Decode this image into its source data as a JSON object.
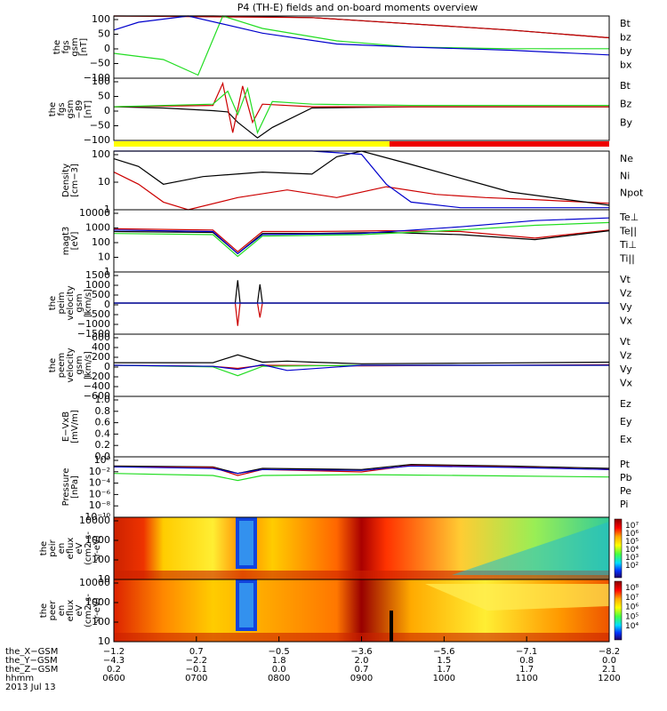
{
  "title": "P4 (TH-E) fields and on-board moments overview",
  "colors": {
    "black": "#000000",
    "red": "#cc0000",
    "green": "#22dd22",
    "blue": "#0000cc",
    "yellow": "#ffff00",
    "bar_red": "#ee0000"
  },
  "colorbar_labels": [
    "10⁷",
    "10⁶",
    "10⁵",
    "10⁴",
    "10³",
    "10²"
  ],
  "colorbar2_labels": [
    "10⁸",
    "10⁷",
    "10⁶",
    "10⁵",
    "10⁴"
  ],
  "chart_data": [
    {
      "type": "line",
      "id": "fgs",
      "ylabel": [
        "the",
        "fgs",
        "gsm",
        "[nT]"
      ],
      "ylim": [
        -100,
        100
      ],
      "ticks": [
        "100",
        "50",
        "0",
        "−50",
        "−100"
      ],
      "series": [
        {
          "name": "Bt",
          "color": "#000000",
          "x": [
            0,
            0.1,
            0.2,
            0.4,
            0.6,
            0.8,
            1.0
          ],
          "values": [
            100,
            100,
            100,
            95,
            75,
            55,
            30
          ]
        },
        {
          "name": "bz",
          "color": "#cc0000",
          "x": [
            0,
            0.4,
            0.6,
            0.8,
            1.0
          ],
          "values": [
            100,
            95,
            75,
            55,
            30
          ]
        },
        {
          "name": "by",
          "color": "#22dd22",
          "x": [
            0,
            0.1,
            0.17,
            0.22,
            0.3,
            0.45,
            0.6,
            0.8,
            1.0
          ],
          "values": [
            -20,
            -40,
            -90,
            100,
            60,
            20,
            0,
            -5,
            -5
          ]
        },
        {
          "name": "bx",
          "color": "#0000cc",
          "x": [
            0,
            0.05,
            0.15,
            0.3,
            0.45,
            0.6,
            0.8,
            1.0
          ],
          "values": [
            55,
            80,
            100,
            45,
            10,
            0,
            -10,
            -25
          ]
        }
      ]
    },
    {
      "type": "line",
      "id": "fgs-dsl",
      "ylabel": [
        "the",
        "fgs",
        "gsm",
        "−89",
        "[nT]"
      ],
      "ylim": [
        -130,
        110
      ],
      "ticks": [
        "100",
        "50",
        "0",
        "−50",
        "−100"
      ],
      "series": [
        {
          "name": "Bt",
          "color": "#000000",
          "x": [
            0,
            0.1,
            0.2,
            0.23,
            0.25,
            0.27,
            0.29,
            0.32,
            0.4,
            0.6,
            0.8,
            1.0
          ],
          "values": [
            0,
            -5,
            -15,
            -20,
            -60,
            -90,
            -120,
            -80,
            -5,
            0,
            0,
            0
          ]
        },
        {
          "name": "Bz",
          "color": "#cc0000",
          "x": [
            0,
            0.2,
            0.22,
            0.24,
            0.26,
            0.28,
            0.3,
            0.4,
            0.6,
            1.0
          ],
          "values": [
            0,
            5,
            90,
            -100,
            80,
            -60,
            10,
            0,
            0,
            0
          ]
        },
        {
          "name": "By",
          "color": "#22dd22",
          "x": [
            0,
            0.2,
            0.23,
            0.25,
            0.27,
            0.29,
            0.32,
            0.4,
            0.6,
            1.0
          ],
          "values": [
            0,
            10,
            60,
            -30,
            70,
            -100,
            20,
            10,
            5,
            5
          ]
        }
      ]
    },
    {
      "type": "line",
      "id": "density",
      "ylabel": [
        "Density",
        "[cm−3]"
      ],
      "scale": "log",
      "ylim": [
        1,
        200
      ],
      "ticks": [
        "100",
        "10",
        "1"
      ],
      "series": [
        {
          "name": "Ne",
          "color": "#cc0000",
          "x": [
            0,
            0.05,
            0.1,
            0.15,
            0.25,
            0.35,
            0.45,
            0.55,
            0.65,
            0.75,
            0.85,
            0.95,
            1.0
          ],
          "values": [
            30,
            10,
            2,
            1,
            3,
            6,
            3,
            8,
            4,
            3,
            2.5,
            2,
            1.8
          ]
        },
        {
          "name": "Ni",
          "color": "#000000",
          "x": [
            0,
            0.05,
            0.1,
            0.18,
            0.3,
            0.4,
            0.45,
            0.5,
            0.6,
            0.8,
            1.0
          ],
          "values": [
            100,
            50,
            10,
            20,
            30,
            25,
            120,
            200,
            60,
            5,
            1.5
          ]
        },
        {
          "name": "Npot",
          "color": "#0000cc",
          "x": [
            0,
            0.2,
            0.4,
            0.5,
            0.55,
            0.6,
            0.7,
            0.8,
            1.0
          ],
          "values": [
            200,
            200,
            200,
            150,
            10,
            2,
            1.2,
            1.2,
            1.2
          ]
        }
      ]
    },
    {
      "type": "line",
      "id": "temperature",
      "ylabel": [
        "magt3",
        "[eV]"
      ],
      "scale": "log",
      "ylim": [
        1,
        10000
      ],
      "ticks": [
        "10000",
        "1000",
        "100",
        "10",
        "1"
      ],
      "series": [
        {
          "name": "Te⊥",
          "color": "#cc0000",
          "x": [
            0,
            0.2,
            0.25,
            0.3,
            0.4,
            0.55,
            0.7,
            0.85,
            1.0
          ],
          "values": [
            600,
            500,
            20,
            400,
            400,
            450,
            400,
            150,
            500
          ]
        },
        {
          "name": "Te||",
          "color": "#000000",
          "x": [
            0,
            0.2,
            0.25,
            0.3,
            0.4,
            0.55,
            0.7,
            0.85,
            1.0
          ],
          "values": [
            400,
            350,
            15,
            300,
            300,
            350,
            250,
            120,
            450
          ]
        },
        {
          "name": "Ti⊥",
          "color": "#0000cc",
          "x": [
            0,
            0.2,
            0.25,
            0.3,
            0.5,
            0.7,
            0.85,
            1.0
          ],
          "values": [
            500,
            400,
            15,
            250,
            300,
            800,
            2000,
            3000
          ]
        },
        {
          "name": "Ti||",
          "color": "#22dd22",
          "x": [
            0,
            0.2,
            0.25,
            0.3,
            0.5,
            0.7,
            0.85,
            1.0
          ],
          "values": [
            300,
            250,
            10,
            200,
            250,
            500,
            1000,
            1500
          ]
        }
      ]
    },
    {
      "type": "line",
      "id": "peim-velocity",
      "ylabel": [
        "the",
        "peim",
        "velocity",
        "gsm",
        "[km/s]"
      ],
      "ylim": [
        -1500,
        1500
      ],
      "ticks": [
        "1500",
        "1000",
        "500",
        "0",
        "−500",
        "−1000",
        "−1500"
      ],
      "series": [
        {
          "name": "Vt",
          "color": "#000000",
          "x": [
            0,
            0.245,
            0.25,
            0.255,
            0.29,
            0.295,
            0.3,
            1.0
          ],
          "values": [
            0,
            0,
            1100,
            0,
            0,
            900,
            0,
            0
          ]
        },
        {
          "name": "Vz",
          "color": "#cc0000",
          "x": [
            0,
            0.245,
            0.25,
            0.255,
            0.29,
            0.295,
            0.3,
            1.0
          ],
          "values": [
            0,
            0,
            -1100,
            0,
            0,
            -700,
            0,
            0
          ]
        },
        {
          "name": "Vy",
          "color": "#22dd22",
          "x": [
            0,
            1.0
          ],
          "values": [
            0,
            0
          ]
        },
        {
          "name": "Vx",
          "color": "#0000cc",
          "x": [
            0,
            1.0
          ],
          "values": [
            0,
            0
          ]
        }
      ]
    },
    {
      "type": "line",
      "id": "peem-velocity",
      "ylabel": [
        "the",
        "peem",
        "velocity",
        "gsm",
        "[km/s]"
      ],
      "ylim": [
        -600,
        600
      ],
      "ticks": [
        "600",
        "400",
        "200",
        "0",
        "−200",
        "−400",
        "−600"
      ],
      "series": [
        {
          "name": "Vt",
          "color": "#000000",
          "x": [
            0,
            0.2,
            0.25,
            0.3,
            0.35,
            0.4,
            0.5,
            0.7,
            1.0
          ],
          "values": [
            50,
            50,
            200,
            60,
            80,
            60,
            30,
            40,
            60
          ]
        },
        {
          "name": "Vz",
          "color": "#cc0000",
          "x": [
            0,
            0.2,
            0.25,
            0.3,
            0.5,
            1.0
          ],
          "values": [
            0,
            -20,
            -60,
            0,
            -10,
            10
          ]
        },
        {
          "name": "Vy",
          "color": "#22dd22",
          "x": [
            0,
            0.2,
            0.25,
            0.3,
            0.5,
            1.0
          ],
          "values": [
            0,
            -30,
            -200,
            -20,
            0,
            0
          ]
        },
        {
          "name": "Vx",
          "color": "#0000cc",
          "x": [
            0,
            0.2,
            0.25,
            0.3,
            0.35,
            0.5,
            1.0
          ],
          "values": [
            0,
            -20,
            -80,
            10,
            -100,
            0,
            0
          ]
        }
      ]
    },
    {
      "type": "line",
      "id": "e-vxb",
      "ylabel": [
        "E−VxB",
        "[mV/m]"
      ],
      "ylim": [
        0,
        1.0
      ],
      "ticks": [
        "1.0",
        "0.8",
        "0.6",
        "0.4",
        "0.2",
        "0.0"
      ],
      "series": [
        {
          "name": "Ez",
          "color": "#cc0000",
          "x": [],
          "values": []
        },
        {
          "name": "Ey",
          "color": "#22dd22",
          "x": [],
          "values": []
        },
        {
          "name": "Ex",
          "color": "#0000cc",
          "x": [],
          "values": []
        }
      ]
    },
    {
      "type": "line",
      "id": "pressure",
      "ylabel": [
        "Pressure",
        "[nPa]"
      ],
      "scale": "log",
      "ylim": [
        1e-10,
        100.0
      ],
      "ticks": [
        "10⁰",
        "10⁻²",
        "10⁻⁴",
        "10⁻⁶",
        "10⁻⁸",
        "10⁻¹⁰"
      ],
      "series": [
        {
          "name": "Pt",
          "color": "#000000",
          "x": [
            0,
            0.2,
            0.25,
            0.3,
            0.5,
            0.6,
            0.8,
            1.0
          ],
          "values": [
            1.5,
            1,
            0.05,
            0.5,
            0.3,
            3,
            1.5,
            0.5
          ]
        },
        {
          "name": "Pb",
          "color": "#cc0000",
          "x": [
            0,
            0.2,
            0.25,
            0.3,
            0.5,
            0.6,
            0.8,
            1.0
          ],
          "values": [
            1,
            0.8,
            0.02,
            0.3,
            0.1,
            2,
            1,
            0.3
          ]
        },
        {
          "name": "Pe",
          "color": "#22dd22",
          "x": [
            0,
            0.2,
            0.25,
            0.3,
            0.5,
            0.7,
            1.0
          ],
          "values": [
            0.05,
            0.02,
            0.002,
            0.02,
            0.03,
            0.02,
            0.01
          ]
        },
        {
          "name": "Pi",
          "color": "#0000cc",
          "x": [
            0,
            0.2,
            0.25,
            0.3,
            0.5,
            0.6,
            0.8,
            1.0
          ],
          "values": [
            1,
            0.5,
            0.05,
            0.3,
            0.2,
            1.5,
            0.8,
            0.3
          ]
        }
      ]
    },
    {
      "type": "heatmap",
      "id": "peir-spectrum",
      "ylabel": [
        "the",
        "peir",
        "en",
        "eflux",
        "eV",
        "(cm2-s-",
        "sr-eV)"
      ],
      "ticks": [
        "10000",
        "1000",
        "100",
        "10"
      ]
    },
    {
      "type": "heatmap",
      "id": "peer-spectrum",
      "ylabel": [
        "the",
        "peer",
        "en",
        "eflux",
        "eV",
        "(cm2-s-",
        "sr-eV)"
      ],
      "ticks": [
        "10000",
        "1000",
        "100",
        "10"
      ]
    }
  ],
  "footer": {
    "rows": [
      {
        "label": "the_X−GSM",
        "values": [
          "−1.2",
          "0.7",
          "−0.5",
          "−3.6",
          "−5.6",
          "−7.1",
          "−8.2"
        ]
      },
      {
        "label": "the_Y−GSM",
        "values": [
          "−4.3",
          "−2.2",
          "1.8",
          "2.0",
          "1.5",
          "0.8",
          "0.0"
        ]
      },
      {
        "label": "the_Z−GSM",
        "values": [
          "0.2",
          "−0.1",
          "0.0",
          "0.7",
          "1.7",
          "1.7",
          "2.1"
        ]
      },
      {
        "label": "hhmm",
        "values": [
          "0600",
          "0700",
          "0800",
          "0900",
          "1000",
          "1100",
          "1200"
        ]
      }
    ],
    "date": "2013 Jul 13"
  }
}
